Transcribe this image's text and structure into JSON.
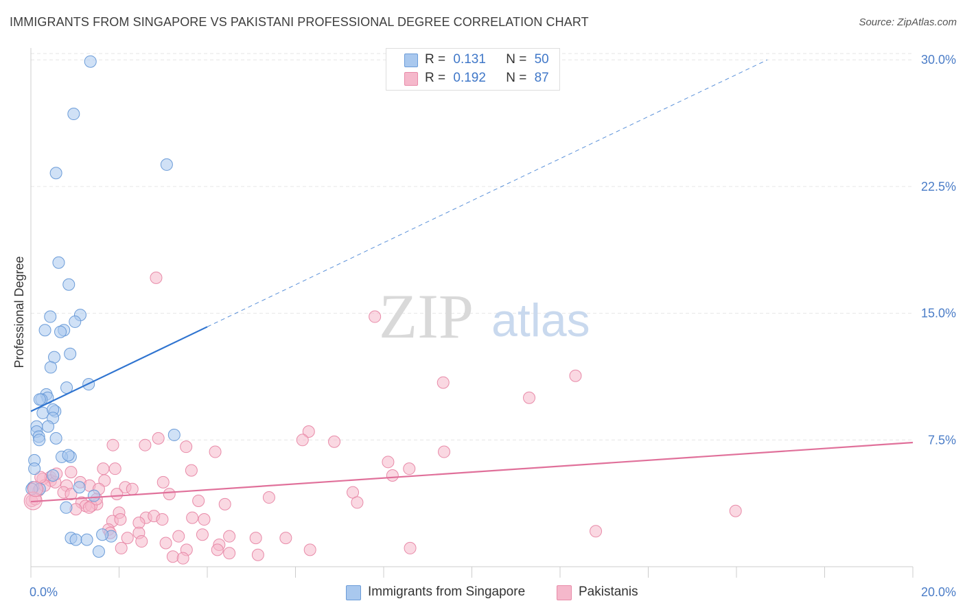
{
  "header": {
    "title": "IMMIGRANTS FROM SINGAPORE VS PAKISTANI PROFESSIONAL DEGREE CORRELATION CHART",
    "source": "Source: ZipAtlas.com"
  },
  "watermark": {
    "zip": "ZIP",
    "atlas": "atlas"
  },
  "colors": {
    "blue_fill": "#a9c8ee",
    "blue_stroke": "#6a9bd8",
    "blue_line": "#2f74d0",
    "pink_fill": "#f5b8cb",
    "pink_stroke": "#e88aa8",
    "pink_line": "#e0709a",
    "tick_text": "#4a7cc7",
    "grid": "#e6e6e6"
  },
  "stats_legend": {
    "rows": [
      {
        "r_label": "R =",
        "r_value": "0.131",
        "n_label": "N =",
        "n_value": "50"
      },
      {
        "r_label": "R =",
        "r_value": "0.192",
        "n_label": "N =",
        "n_value": "87"
      }
    ]
  },
  "bottom_legend": {
    "items": [
      {
        "label": "Immigrants from Singapore"
      },
      {
        "label": "Pakistanis"
      }
    ]
  },
  "chart_data": {
    "type": "scatter",
    "title": "IMMIGRANTS FROM SINGAPORE VS PAKISTANI PROFESSIONAL DEGREE CORRELATION CHART",
    "ylabel": "Professional Degree",
    "xlabel": "",
    "xlim": [
      0,
      20
    ],
    "ylim": [
      0,
      30.7
    ],
    "x_tick_labels": [
      {
        "value": 0,
        "label": "0.0%"
      },
      {
        "value": 20,
        "label": "20.0%"
      }
    ],
    "y_tick_labels": [
      {
        "value": 7.5,
        "label": "7.5%"
      },
      {
        "value": 15,
        "label": "15.0%"
      },
      {
        "value": 22.5,
        "label": "22.5%"
      },
      {
        "value": 30,
        "label": "30.0%"
      }
    ],
    "grid": true,
    "series": [
      {
        "name": "Immigrants from Singapore",
        "color": "#a9c8ee",
        "points": [
          [
            1.35,
            29.9
          ],
          [
            0.97,
            26.8
          ],
          [
            3.08,
            23.8
          ],
          [
            0.57,
            23.3
          ],
          [
            0.63,
            18.0
          ],
          [
            0.86,
            16.7
          ],
          [
            1.12,
            14.9
          ],
          [
            0.44,
            14.8
          ],
          [
            1.0,
            14.5
          ],
          [
            0.32,
            14.0
          ],
          [
            0.75,
            14.0
          ],
          [
            0.67,
            13.9
          ],
          [
            0.89,
            12.6
          ],
          [
            0.53,
            12.4
          ],
          [
            0.45,
            11.8
          ],
          [
            1.31,
            10.8
          ],
          [
            0.81,
            10.6
          ],
          [
            0.35,
            10.2
          ],
          [
            0.38,
            10.0
          ],
          [
            0.24,
            9.9
          ],
          [
            0.2,
            9.9
          ],
          [
            0.55,
            9.2
          ],
          [
            0.27,
            9.1
          ],
          [
            0.5,
            9.3
          ],
          [
            0.5,
            8.8
          ],
          [
            0.39,
            8.3
          ],
          [
            0.13,
            8.3
          ],
          [
            0.13,
            8.0
          ],
          [
            0.18,
            7.7
          ],
          [
            3.25,
            7.8
          ],
          [
            0.57,
            7.6
          ],
          [
            0.19,
            7.5
          ],
          [
            0.9,
            6.5
          ],
          [
            0.7,
            6.5
          ],
          [
            0.85,
            6.6
          ],
          [
            0.08,
            6.3
          ],
          [
            0.08,
            5.8
          ],
          [
            0.5,
            5.4
          ],
          [
            1.1,
            4.7
          ],
          [
            0.05,
            4.7
          ],
          [
            0.2,
            4.6
          ],
          [
            1.43,
            4.2
          ],
          [
            0.8,
            3.5
          ],
          [
            0.91,
            1.7
          ],
          [
            1.02,
            1.6
          ],
          [
            1.27,
            1.6
          ],
          [
            1.82,
            1.8
          ],
          [
            1.62,
            1.9
          ],
          [
            1.54,
            0.9
          ],
          [
            0.02,
            4.6
          ]
        ]
      },
      {
        "name": "Pakistanis",
        "color": "#f5b8cb",
        "points": [
          [
            2.84,
            17.1
          ],
          [
            7.8,
            14.8
          ],
          [
            12.35,
            11.3
          ],
          [
            9.35,
            10.9
          ],
          [
            11.3,
            10.0
          ],
          [
            6.3,
            8.0
          ],
          [
            2.89,
            7.6
          ],
          [
            6.16,
            7.5
          ],
          [
            6.88,
            7.4
          ],
          [
            1.86,
            7.2
          ],
          [
            2.59,
            7.2
          ],
          [
            3.52,
            7.1
          ],
          [
            4.18,
            6.8
          ],
          [
            9.37,
            6.8
          ],
          [
            8.1,
            6.2
          ],
          [
            1.91,
            5.8
          ],
          [
            8.58,
            5.8
          ],
          [
            1.64,
            5.8
          ],
          [
            3.64,
            5.7
          ],
          [
            8.2,
            5.4
          ],
          [
            0.91,
            5.6
          ],
          [
            0.44,
            5.3
          ],
          [
            0.45,
            5.1
          ],
          [
            0.27,
            5.2
          ],
          [
            0.55,
            5.0
          ],
          [
            3.0,
            5.0
          ],
          [
            1.67,
            5.1
          ],
          [
            2.14,
            4.7
          ],
          [
            1.12,
            5.0
          ],
          [
            0.81,
            4.8
          ],
          [
            1.33,
            4.8
          ],
          [
            1.54,
            4.6
          ],
          [
            2.3,
            4.6
          ],
          [
            0.74,
            4.4
          ],
          [
            0.91,
            4.3
          ],
          [
            7.3,
            4.4
          ],
          [
            1.95,
            4.3
          ],
          [
            3.14,
            4.3
          ],
          [
            5.4,
            4.1
          ],
          [
            1.15,
            3.8
          ],
          [
            1.5,
            3.7
          ],
          [
            1.24,
            3.6
          ],
          [
            0.02,
            3.9
          ],
          [
            1.02,
            3.4
          ],
          [
            1.37,
            3.6
          ],
          [
            3.8,
            3.9
          ],
          [
            4.4,
            3.7
          ],
          [
            7.4,
            3.8
          ],
          [
            15.98,
            3.3
          ],
          [
            2.0,
            3.2
          ],
          [
            1.85,
            2.7
          ],
          [
            2.03,
            2.8
          ],
          [
            2.61,
            2.9
          ],
          [
            2.79,
            3.0
          ],
          [
            2.98,
            2.8
          ],
          [
            3.66,
            2.9
          ],
          [
            3.93,
            2.8
          ],
          [
            2.45,
            2.6
          ],
          [
            1.76,
            2.2
          ],
          [
            1.8,
            2.0
          ],
          [
            2.45,
            2.0
          ],
          [
            3.35,
            1.8
          ],
          [
            3.89,
            1.9
          ],
          [
            4.5,
            1.8
          ],
          [
            5.1,
            1.7
          ],
          [
            5.78,
            1.7
          ],
          [
            2.51,
            1.5
          ],
          [
            3.06,
            1.4
          ],
          [
            2.19,
            1.7
          ],
          [
            12.81,
            2.1
          ],
          [
            4.27,
            1.3
          ],
          [
            2.05,
            1.1
          ],
          [
            3.53,
            1.0
          ],
          [
            4.23,
            1.0
          ],
          [
            4.5,
            0.8
          ],
          [
            5.15,
            0.7
          ],
          [
            3.22,
            0.6
          ],
          [
            3.45,
            0.5
          ],
          [
            6.33,
            1.0
          ],
          [
            8.6,
            1.1
          ],
          [
            0.1,
            4.0
          ],
          [
            0.17,
            4.5
          ],
          [
            0.31,
            4.8
          ],
          [
            0.58,
            5.5
          ],
          [
            1.32,
            3.5
          ],
          [
            1.49,
            4.0
          ],
          [
            0.22,
            5.3
          ]
        ]
      }
    ],
    "trend_lines": [
      {
        "series": "Immigrants from Singapore",
        "x_solid": [
          0,
          4.0
        ],
        "y_solid": [
          9.2,
          14.2
        ],
        "x_dashed": [
          4.0,
          16.7
        ],
        "y_dashed": [
          14.2,
          30.0
        ]
      },
      {
        "series": "Pakistanis",
        "x": [
          0,
          20
        ],
        "y": [
          3.85,
          7.35
        ]
      }
    ]
  }
}
